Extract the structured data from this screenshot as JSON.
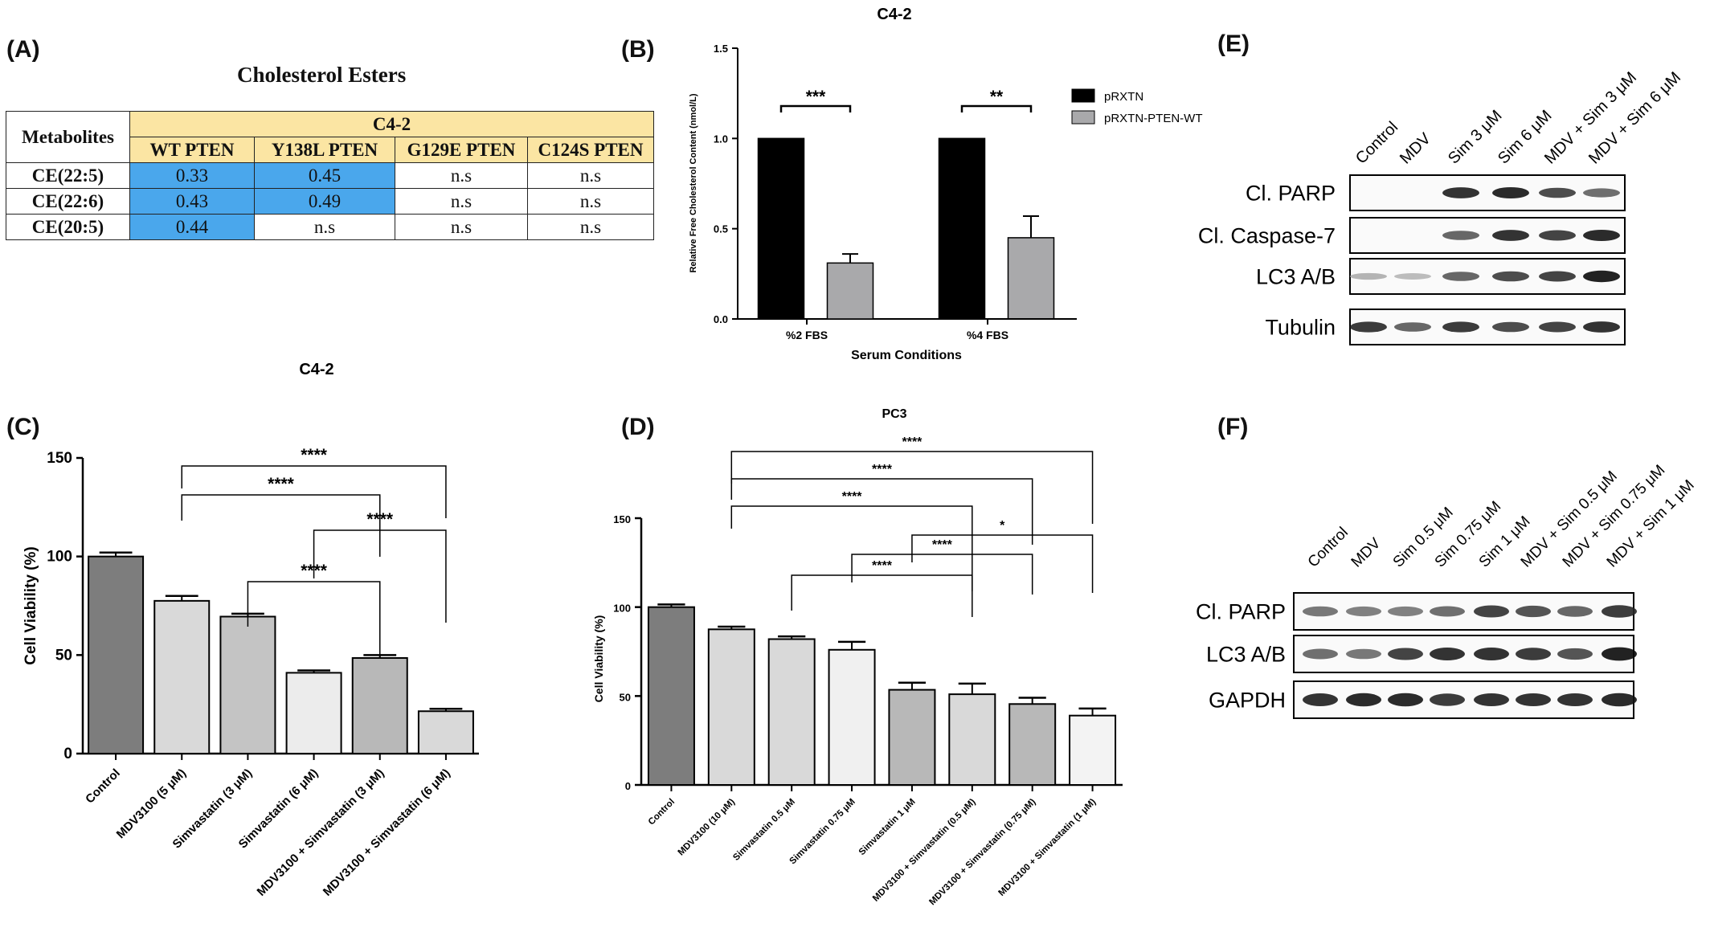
{
  "panels": {
    "A": "(A)",
    "B": "(B)",
    "C": "(C)",
    "D": "(D)",
    "E": "(E)",
    "F": "(F)"
  },
  "table": {
    "title": "Cholesterol Esters",
    "corner": "Metabolites",
    "group": "C4-2",
    "columns": [
      "WT PTEN",
      "Y138L PTEN",
      "G129E PTEN",
      "C124S PTEN"
    ],
    "rows": [
      {
        "name": "CE(22:5)",
        "values": [
          "0.33",
          "0.45",
          "n.s",
          "n.s"
        ],
        "highlight": [
          true,
          true,
          false,
          false
        ]
      },
      {
        "name": "CE(22:6)",
        "values": [
          "0.43",
          "0.49",
          "n.s",
          "n.s"
        ],
        "highlight": [
          true,
          true,
          false,
          false
        ]
      },
      {
        "name": "CE(20:5)",
        "values": [
          "0.44",
          "n.s",
          "n.s",
          "n.s"
        ],
        "highlight": [
          true,
          false,
          false,
          false
        ]
      }
    ],
    "highlight_color": "#4aa7ec",
    "header_color": "#fbe5a3"
  },
  "chart_data": [
    {
      "id": "B",
      "type": "bar",
      "title": "C4-2",
      "xlabel": "Serum Conditions",
      "ylabel": "Relative Free Cholesterol Content (nmol/L)",
      "ylim": [
        0,
        1.5
      ],
      "yticks": [
        "0.0",
        "0.5",
        "1.0",
        "1.5"
      ],
      "categories": [
        "%2 FBS",
        "%4 FBS"
      ],
      "series": [
        {
          "name": "pRXTN",
          "color": "#000000",
          "values": [
            1.0,
            1.0
          ],
          "errors": [
            0,
            0
          ]
        },
        {
          "name": "pRXTN-PTEN-WT",
          "color": "#a9a9ab",
          "values": [
            0.31,
            0.45
          ],
          "errors": [
            0.05,
            0.12
          ]
        }
      ],
      "significance": [
        "***",
        "**"
      ],
      "legend": "right"
    },
    {
      "id": "C",
      "type": "bar",
      "title": "C4-2",
      "xlabel": "",
      "ylabel": "Cell Viability (%)",
      "ylim": [
        0,
        150
      ],
      "yticks": [
        "0",
        "50",
        "100",
        "150"
      ],
      "categories": [
        "Control",
        "MDV3100 (5 μM)",
        "Simvastatin (3 μM)",
        "Simvastatin (6 μM)",
        "MDV3100 + Simvastatin (3 μM)",
        "MDV3100 + Simvastatin (6 μM)"
      ],
      "values": [
        100,
        77.5,
        69.5,
        41,
        48.5,
        21.5
      ],
      "errors": [
        2,
        2.5,
        1.5,
        1.2,
        1.5,
        1.2
      ],
      "colors": [
        "#7d7d7d",
        "#d9d9d9",
        "#c4c4c4",
        "#ececec",
        "#b8b8b8",
        "#d9d9d9"
      ],
      "significance": [
        {
          "from": 1,
          "to": 5,
          "label": "****"
        },
        {
          "from": 1,
          "to": 4,
          "label": "****"
        },
        {
          "from": 3,
          "to": 5,
          "label": "****"
        },
        {
          "from": 2,
          "to": 4,
          "label": "****"
        }
      ]
    },
    {
      "id": "D",
      "type": "bar",
      "title": "PC3",
      "xlabel": "",
      "ylabel": "Cell Viability (%)",
      "ylim": [
        0,
        150
      ],
      "yticks": [
        "0",
        "50",
        "100",
        "150"
      ],
      "categories": [
        "Control",
        "MDV3100 (10 μM)",
        "Simvastatin 0.5 μM",
        "Simvastatin 0.75 μM",
        "Simvastatin 1 μM",
        "MDV3100 + Simvastatin (0.5 μM)",
        "MDV3100 + Simvastatin (0.75 μM)",
        "MDV3100 + Simvastatin (1 μM)"
      ],
      "values": [
        100,
        87.5,
        82,
        76,
        53.5,
        51,
        45.5,
        39
      ],
      "errors": [
        1.5,
        1.5,
        1.5,
        4.5,
        4,
        6,
        3.5,
        4
      ],
      "colors": [
        "#7d7d7d",
        "#d9d9d9",
        "#d9d9d9",
        "#f0f0f0",
        "#b8b8b8",
        "#d9d9d9",
        "#b8b8b8",
        "#f3f3f3"
      ],
      "significance": [
        {
          "from": 1,
          "to": 7,
          "label": "****"
        },
        {
          "from": 1,
          "to": 6,
          "label": "****"
        },
        {
          "from": 1,
          "to": 5,
          "label": "****"
        },
        {
          "from": 4,
          "to": 7,
          "label": "*"
        },
        {
          "from": 3,
          "to": 6,
          "label": "****"
        },
        {
          "from": 2,
          "to": 5,
          "label": "****"
        }
      ]
    }
  ],
  "westernE": {
    "lanes": [
      "Control",
      "MDV",
      "Sim 3 μM",
      "Sim 6 μM",
      "MDV + Sim 3 μM",
      "MDV + Sim 6 μM"
    ],
    "rows": [
      {
        "label": "Cl. PARP",
        "bands": [
          0,
          0,
          0.9,
          0.95,
          0.75,
          0.55
        ]
      },
      {
        "label": "Cl. Caspase-7",
        "bands": [
          0,
          0,
          0.6,
          0.9,
          0.8,
          0.95
        ]
      },
      {
        "label": "LC3 A/B",
        "bands": [
          0.15,
          0.1,
          0.6,
          0.75,
          0.8,
          1.0
        ]
      },
      {
        "label": "Tubulin",
        "bands": [
          0.85,
          0.6,
          0.85,
          0.75,
          0.8,
          0.9
        ]
      }
    ]
  },
  "westernF": {
    "lanes": [
      "Control",
      "MDV",
      "Sim 0.5 μM",
      "Sim 0.75 μM",
      "Sim 1 μM",
      "MDV + Sim 0.5 μM",
      "MDV + Sim 0.75 μM",
      "MDV + Sim 1 μM"
    ],
    "rows": [
      {
        "label": "Cl. PARP",
        "bands": [
          0.5,
          0.45,
          0.45,
          0.55,
          0.8,
          0.7,
          0.6,
          0.85
        ]
      },
      {
        "label": "LC3 A/B",
        "bands": [
          0.55,
          0.5,
          0.8,
          0.9,
          0.9,
          0.85,
          0.7,
          1.0
        ]
      },
      {
        "label": "GAPDH",
        "bands": [
          0.9,
          0.95,
          0.95,
          0.85,
          0.9,
          0.9,
          0.9,
          0.95
        ]
      }
    ]
  }
}
